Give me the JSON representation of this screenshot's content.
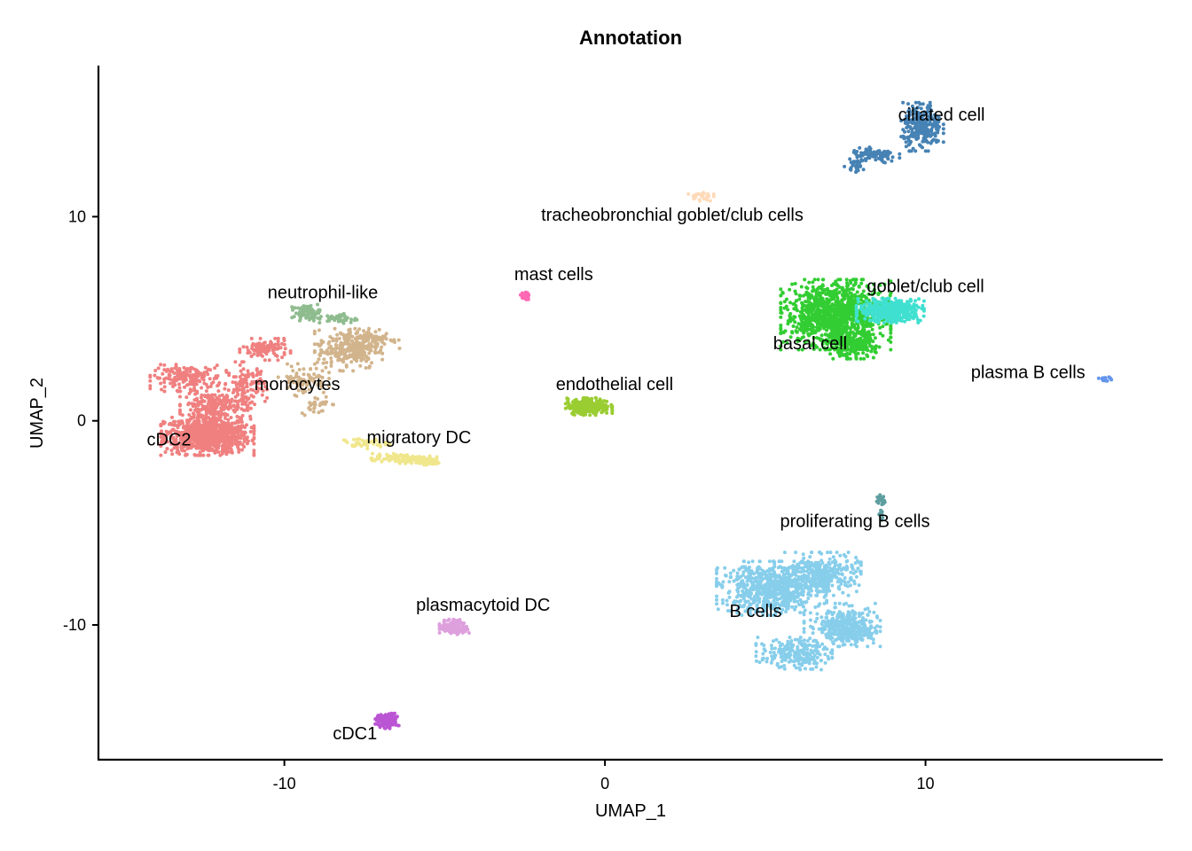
{
  "chart_data": {
    "type": "scatter",
    "title": "Annotation",
    "xlabel": "UMAP_1",
    "ylabel": "UMAP_2",
    "xlim": [
      -15.8,
      17.4
    ],
    "ylim": [
      -16.6,
      17.4
    ],
    "x_ticks": [
      -10,
      0,
      10
    ],
    "y_ticks": [
      -10,
      0,
      10
    ],
    "x_tick_labels": [
      "-10",
      "0",
      "10"
    ],
    "y_tick_labels": [
      "-10",
      "0",
      "10"
    ],
    "grid": false,
    "legend": "none",
    "series": [
      {
        "name": "cDC2",
        "color": "#F08080",
        "center": [
          -12.4,
          -0.7
        ]
      },
      {
        "name": "monocytes",
        "color": "#D2B48C",
        "center": [
          -8.3,
          3.4
        ]
      },
      {
        "name": "neutrophil-like",
        "color": "#8FBC8F",
        "center": [
          -9.0,
          5.3
        ]
      },
      {
        "name": "migratory DC",
        "color": "#F0E68C",
        "center": [
          -6.2,
          -1.8
        ]
      },
      {
        "name": "mast cells",
        "color": "#FF69B4",
        "center": [
          -2.5,
          6.1
        ]
      },
      {
        "name": "endothelial cell",
        "color": "#9ACD32",
        "center": [
          -0.5,
          0.7
        ]
      },
      {
        "name": "tracheobronchial goblet/club cells",
        "color": "#FFDAB9",
        "center": [
          3.0,
          11.0
        ]
      },
      {
        "name": "ciliated cell",
        "color": "#4682B4",
        "center": [
          9.6,
          14.2
        ]
      },
      {
        "name": "basal cell",
        "color": "#32CD32",
        "center": [
          7.3,
          5.0
        ]
      },
      {
        "name": "goblet/club cell",
        "color": "#40E0D0",
        "center": [
          8.8,
          5.3
        ]
      },
      {
        "name": "plasma B cells",
        "color": "#6495ED",
        "center": [
          15.5,
          2.1
        ]
      },
      {
        "name": "proliferating B cells",
        "color": "#5F9EA0",
        "center": [
          8.6,
          -4.3
        ]
      },
      {
        "name": "B cells",
        "color": "#87CEEB",
        "center": [
          6.9,
          -9.1
        ]
      },
      {
        "name": "plasmacytoid DC",
        "color": "#DDA0DD",
        "center": [
          -4.7,
          -10.1
        ]
      },
      {
        "name": "cDC1",
        "color": "#BA55D3",
        "center": [
          -6.8,
          -14.7
        ]
      }
    ],
    "labels": [
      {
        "text": "ciliated cell",
        "x": 10.5,
        "y": 14.7
      },
      {
        "text": "tracheobronchial goblet/club cells",
        "x": 2.1,
        "y": 9.8
      },
      {
        "text": "goblet/club cell",
        "x": 10.0,
        "y": 6.3
      },
      {
        "text": "mast cells",
        "x": -1.6,
        "y": 6.9
      },
      {
        "text": "neutrophil-like",
        "x": -8.8,
        "y": 6.0
      },
      {
        "text": "basal cell",
        "x": 6.4,
        "y": 3.5
      },
      {
        "text": "plasma B cells",
        "x": 13.2,
        "y": 2.1
      },
      {
        "text": "endothelial cell",
        "x": 0.3,
        "y": 1.5
      },
      {
        "text": "monocytes",
        "x": -9.6,
        "y": 1.5
      },
      {
        "text": "cDC2",
        "x": -13.6,
        "y": -1.2
      },
      {
        "text": "migratory DC",
        "x": -5.8,
        "y": -1.1
      },
      {
        "text": "proliferating B cells",
        "x": 7.8,
        "y": -5.2
      },
      {
        "text": "B cells",
        "x": 4.7,
        "y": -9.6
      },
      {
        "text": "plasmacytoid DC",
        "x": -3.8,
        "y": -9.3
      },
      {
        "text": "cDC1",
        "x": -7.8,
        "y": -15.6
      }
    ]
  }
}
